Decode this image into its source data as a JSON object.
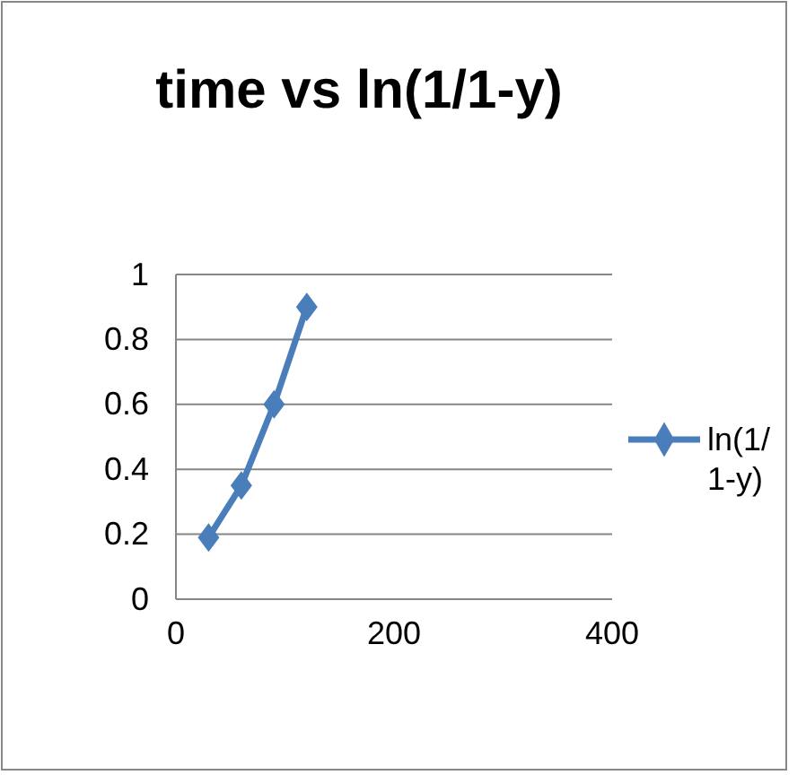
{
  "chart_data": {
    "type": "line",
    "title": "time vs ln(1/1-y)",
    "x": [
      30,
      60,
      90,
      120
    ],
    "series": [
      {
        "name": "ln(1/1-y)",
        "color": "#4a7ebb",
        "values": [
          0.19,
          0.35,
          0.6,
          0.9
        ]
      }
    ],
    "xlim": [
      0,
      400
    ],
    "xticks": [
      0,
      200,
      400
    ],
    "ylim": [
      0,
      1
    ],
    "yticks": [
      0,
      0.2,
      0.4,
      0.6,
      0.8,
      1
    ],
    "grid": "y",
    "legend": "right",
    "marker": "diamond",
    "line_style": "solid"
  }
}
